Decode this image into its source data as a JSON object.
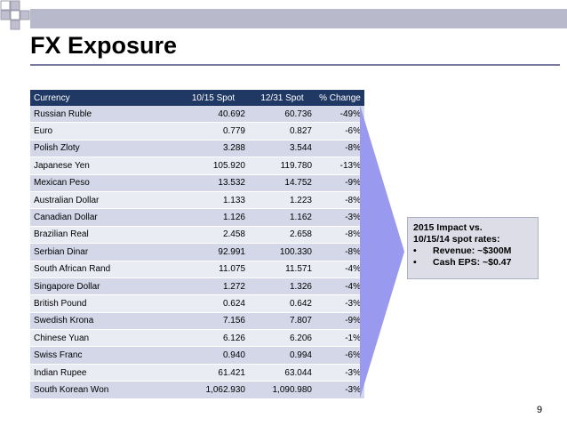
{
  "slide": {
    "title": "FX Exposure",
    "page_number": "9"
  },
  "table": {
    "headers": [
      "Currency",
      "10/15 Spot",
      "12/31 Spot",
      "% Change"
    ],
    "rows": [
      [
        "Russian Ruble",
        "40.692",
        "60.736",
        "-49%"
      ],
      [
        "Euro",
        "0.779",
        "0.827",
        "-6%"
      ],
      [
        "Polish Zloty",
        "3.288",
        "3.544",
        "-8%"
      ],
      [
        "Japanese Yen",
        "105.920",
        "119.780",
        "-13%"
      ],
      [
        "Mexican Peso",
        "13.532",
        "14.752",
        "-9%"
      ],
      [
        "Australian Dollar",
        "1.133",
        "1.223",
        "-8%"
      ],
      [
        "Canadian Dollar",
        "1.126",
        "1.162",
        "-3%"
      ],
      [
        "Brazilian Real",
        "2.458",
        "2.658",
        "-8%"
      ],
      [
        "Serbian Dinar",
        "92.991",
        "100.330",
        "-8%"
      ],
      [
        "South African Rand",
        "11.075",
        "11.571",
        "-4%"
      ],
      [
        "Singapore Dollar",
        "1.272",
        "1.326",
        "-4%"
      ],
      [
        "British Pound",
        "0.624",
        "0.642",
        "-3%"
      ],
      [
        "Swedish Krona",
        "7.156",
        "7.807",
        "-9%"
      ],
      [
        "Chinese Yuan",
        "6.126",
        "6.206",
        "-1%"
      ],
      [
        "Swiss Franc",
        "0.940",
        "0.994",
        "-6%"
      ],
      [
        "Indian Rupee",
        "61.421",
        "63.044",
        "-3%"
      ],
      [
        "South Korean Won",
        "1,062.930",
        "1,090.980",
        "-3%"
      ]
    ]
  },
  "impact_box": {
    "line1": "2015 Impact vs.",
    "line2": "10/15/14 spot rates:",
    "bullets": [
      {
        "bullet": "•",
        "text": "Revenue: ~$300M"
      },
      {
        "bullet": "•",
        "text": "Cash EPS: ~$0.47"
      }
    ]
  },
  "colors": {
    "header_bg": "#1f3864",
    "row_odd": "#d3d7e8",
    "row_even": "#eaecf4",
    "chevron": "#9999f0",
    "band": "#b9b9cc"
  }
}
